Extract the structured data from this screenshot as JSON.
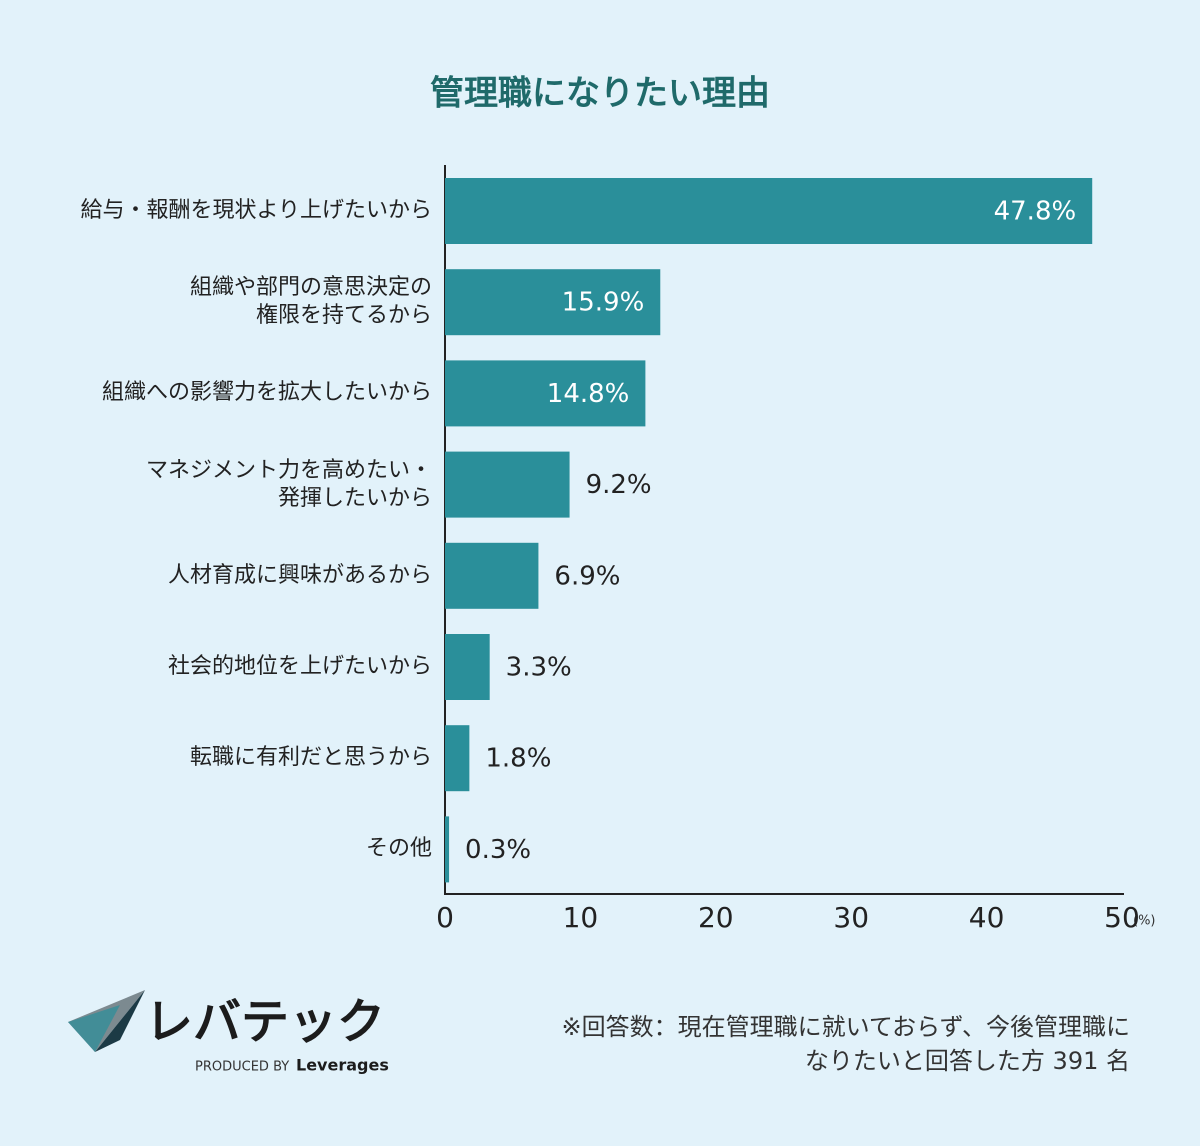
{
  "chart_data": {
    "type": "barh",
    "title": "管理職になりたい理由",
    "categories": [
      "給与・報酬を現状より上げたいから",
      "組織や部門の意思決定の\n権限を持てるから",
      "組織への影響力を拡大したいから",
      "マネジメント力を高めたい・\n発揮したいから",
      "人材育成に興味があるから",
      "社会的地位を上げたいから",
      "転職に有利だと思うから",
      "その他"
    ],
    "values": [
      47.8,
      15.9,
      14.8,
      9.2,
      6.9,
      3.3,
      1.8,
      0.3
    ],
    "value_labels": [
      "47.8%",
      "15.9%",
      "14.8%",
      "9.2%",
      "6.9%",
      "3.3%",
      "1.8%",
      "0.3%"
    ],
    "color": "#2a8f9a",
    "xlim": [
      0,
      50
    ],
    "xticks": [
      0,
      10,
      20,
      30,
      40,
      50
    ],
    "xlabel": "(%)",
    "grid": false
  },
  "logo": {
    "name": "レバテック",
    "produced_by": "PRODUCED BY",
    "brand": "Leverages"
  },
  "note": "※回答数：現在管理職に就いておらず、今後管理職に\nなりたいと回答した方 391 名"
}
